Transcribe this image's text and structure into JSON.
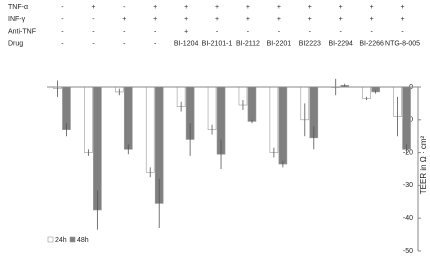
{
  "chart_data": {
    "type": "bar",
    "y_label": "TEER in Ω · cm²",
    "conditions": [
      {
        "label": "TNF-α",
        "values": [
          "-",
          "+",
          "-",
          "+",
          "+",
          "+",
          "+",
          "+",
          "+",
          "+",
          "+",
          "+"
        ]
      },
      {
        "label": "INF-γ",
        "values": [
          "-",
          "-",
          "+",
          "+",
          "+",
          "+",
          "+",
          "+",
          "+",
          "+",
          "+",
          "+"
        ]
      },
      {
        "label": "Anti-TNF",
        "values": [
          "-",
          "-",
          "-",
          "-",
          "+",
          "-",
          "-",
          "-",
          "-",
          "-",
          "-",
          "-"
        ]
      },
      {
        "label": "Drug",
        "values": [
          "-",
          "-",
          "-",
          "-",
          "BI-1204",
          "BI-2101-1",
          "BI-2112",
          "BI-2201",
          "BI2223",
          "BI-2294",
          "BI-2266",
          "NTG-8-005"
        ]
      }
    ],
    "categories": [
      null,
      null,
      null,
      null,
      null,
      null,
      null,
      null,
      null,
      null,
      null,
      null
    ],
    "series": [
      {
        "name": "24h",
        "color": "#ffffff",
        "values": [
          -0.5,
          -20,
          -1.5,
          -26,
          -6,
          -13,
          -5.5,
          -20,
          -10,
          0,
          -3.5,
          -9
        ],
        "errors": [
          2.5,
          1,
          1,
          1.5,
          1.5,
          1.5,
          1.5,
          1.5,
          5,
          2.5,
          0.5,
          6
        ]
      },
      {
        "name": "48h",
        "color": "#808080",
        "values": [
          -13,
          -37.5,
          -19,
          -35.5,
          -16,
          -20.5,
          -10.5,
          -23.5,
          -15.5,
          0.5,
          -1.5,
          -19
        ],
        "errors": [
          2,
          6,
          1.5,
          7.5,
          5,
          4.5,
          0.5,
          1,
          3.5,
          0.5,
          0.5,
          1.5
        ]
      }
    ],
    "last_series_extra": null,
    "ylim": [
      -50,
      0
    ],
    "yticks": [
      0,
      -10,
      -20,
      -30,
      -40,
      -50
    ]
  }
}
